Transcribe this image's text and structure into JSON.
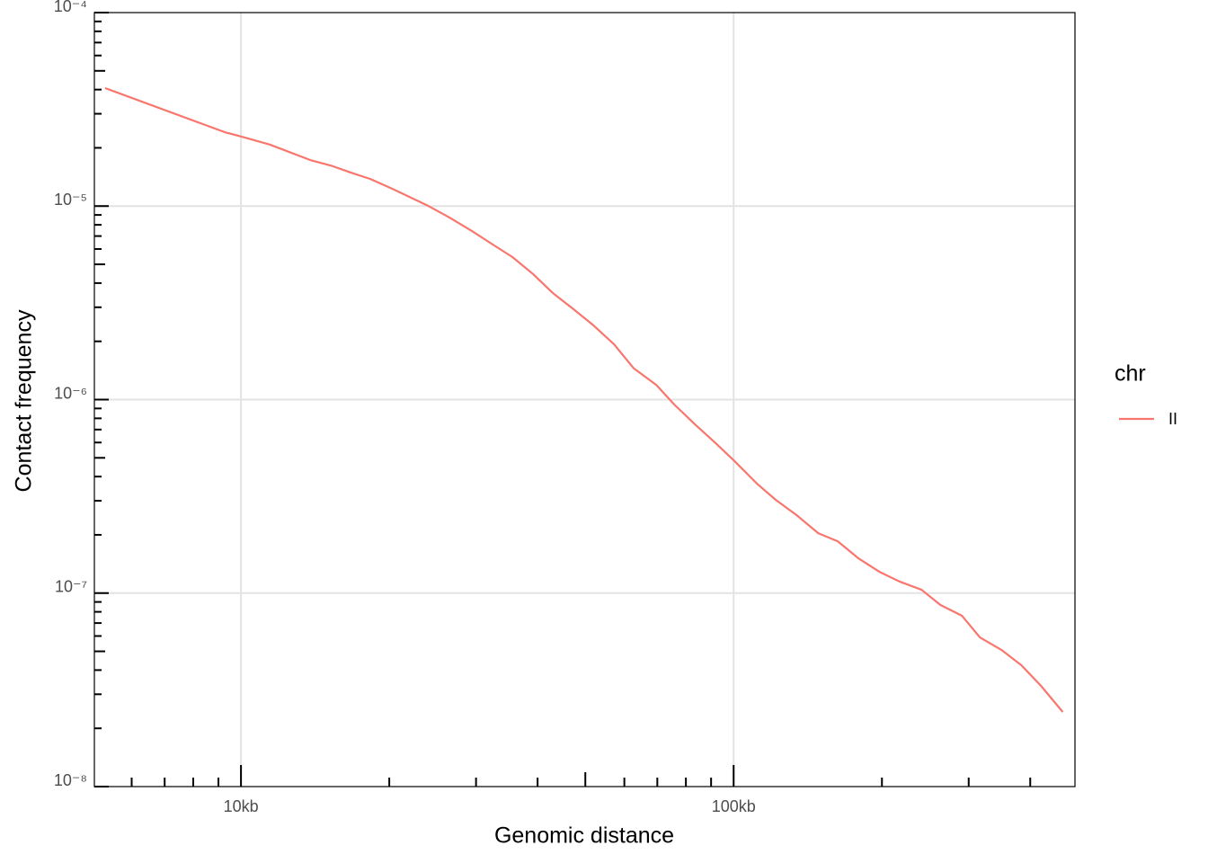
{
  "chart_data": {
    "type": "line",
    "x_label": "Genomic distance",
    "y_label": "Contact frequency",
    "x": [
      5300,
      9270,
      10000,
      11440,
      13820,
      15220,
      16700,
      18310,
      20260,
      23860,
      26510,
      29440,
      32440,
      35570,
      39180,
      42970,
      47330,
      51920,
      57190,
      62710,
      69680,
      75770,
      83470,
      91560,
      100000,
      112000,
      121800,
      134200,
      148500,
      162800,
      179300,
      197500,
      216700,
      240700,
      262900,
      290800,
      316200,
      349800,
      383700,
      420900,
      465600
    ],
    "series": [
      {
        "name": "II",
        "color": "#f8766d",
        "values": [
          4.07e-05,
          2.41e-05,
          2.29e-05,
          2.08e-05,
          1.73e-05,
          1.62e-05,
          1.49e-05,
          1.38e-05,
          1.23e-05,
          1.01e-05,
          8.72e-06,
          7.43e-06,
          6.33e-06,
          5.45e-06,
          4.45e-06,
          3.55e-06,
          2.93e-06,
          2.42e-06,
          1.93e-06,
          1.45e-06,
          1.19e-06,
          9.43e-07,
          7.45e-07,
          6.01e-07,
          4.86e-07,
          3.64e-07,
          3.03e-07,
          2.53e-07,
          2.04e-07,
          1.85e-07,
          1.51e-07,
          1.29e-07,
          1.15e-07,
          1.04e-07,
          8.68e-08,
          7.63e-08,
          5.9e-08,
          5.08e-08,
          4.24e-08,
          3.31e-08,
          2.43e-08
        ]
      }
    ],
    "legend_title": "chr",
    "legend_position": "right",
    "xscale": "log",
    "yscale": "log",
    "grid": true,
    "xlim": [
      5040,
      493000
    ],
    "ylim": [
      1e-08,
      0.0001
    ],
    "xticks": [
      {
        "value": 10000,
        "label": "10kb"
      },
      {
        "value": 100000,
        "label": "100kb"
      }
    ],
    "yticks": [
      {
        "value": 1e-08,
        "label": "10⁻⁸"
      },
      {
        "value": 1e-07,
        "label": "10⁻⁷"
      },
      {
        "value": 1e-06,
        "label": "10⁻⁶"
      },
      {
        "value": 1e-05,
        "label": "10⁻⁵"
      },
      {
        "value": 0.0001,
        "label": "10⁻⁴"
      }
    ],
    "xminorticks": [
      6000,
      7000,
      8000,
      9000,
      20000,
      30000,
      40000,
      50000,
      60000,
      70000,
      80000,
      90000,
      200000,
      300000,
      400000
    ],
    "yminorticks": [
      2e-08,
      3e-08,
      4e-08,
      5e-08,
      6e-08,
      7e-08,
      8e-08,
      9e-08,
      2e-07,
      3e-07,
      4e-07,
      5e-07,
      6e-07,
      7e-07,
      8e-07,
      9e-07,
      2e-06,
      3e-06,
      4e-06,
      5e-06,
      6e-06,
      7e-06,
      8e-06,
      9e-06,
      2e-05,
      3e-05,
      4e-05,
      5e-05,
      6e-05,
      7e-05,
      8e-05,
      9e-05
    ]
  }
}
